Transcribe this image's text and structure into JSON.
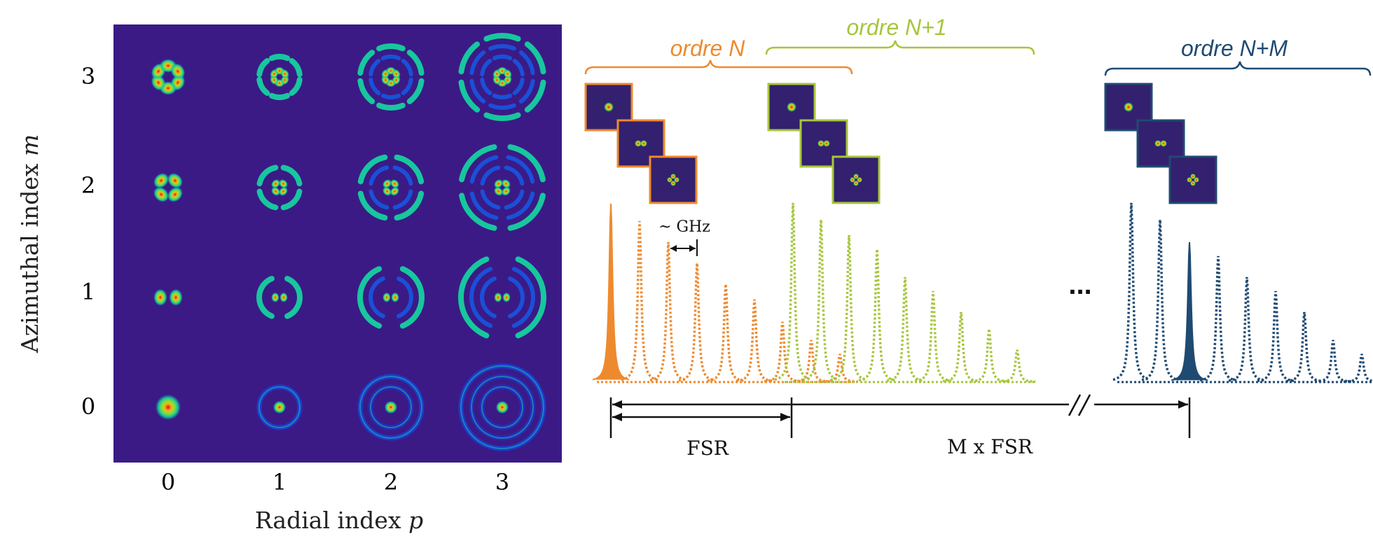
{
  "mode_grid": {
    "x_label_text": "Radial index",
    "x_label_symbol": "p",
    "y_label_text": "Azimuthal index",
    "y_label_symbol": "m",
    "p_ticks": [
      "0",
      "1",
      "2",
      "3"
    ],
    "m_ticks": [
      "3",
      "2",
      "1",
      "0"
    ],
    "background_color": "#3b1a86"
  },
  "spectrum": {
    "groups": [
      {
        "label": "ordre N",
        "color": "#ee8a2e"
      },
      {
        "label": "ordre N+1",
        "color": "#a6c63c"
      },
      {
        "label": "ordre N+M",
        "color": "#1f4a72"
      }
    ],
    "spacing_label": "~ GHz",
    "ellipsis": "...",
    "fsr_label": "FSR",
    "mfsr_label": "M x FSR"
  },
  "colors": {
    "orange": "#ee8a2e",
    "green": "#a6c63c",
    "navy": "#1f4a72",
    "thumb_bg": "#33206e"
  }
}
